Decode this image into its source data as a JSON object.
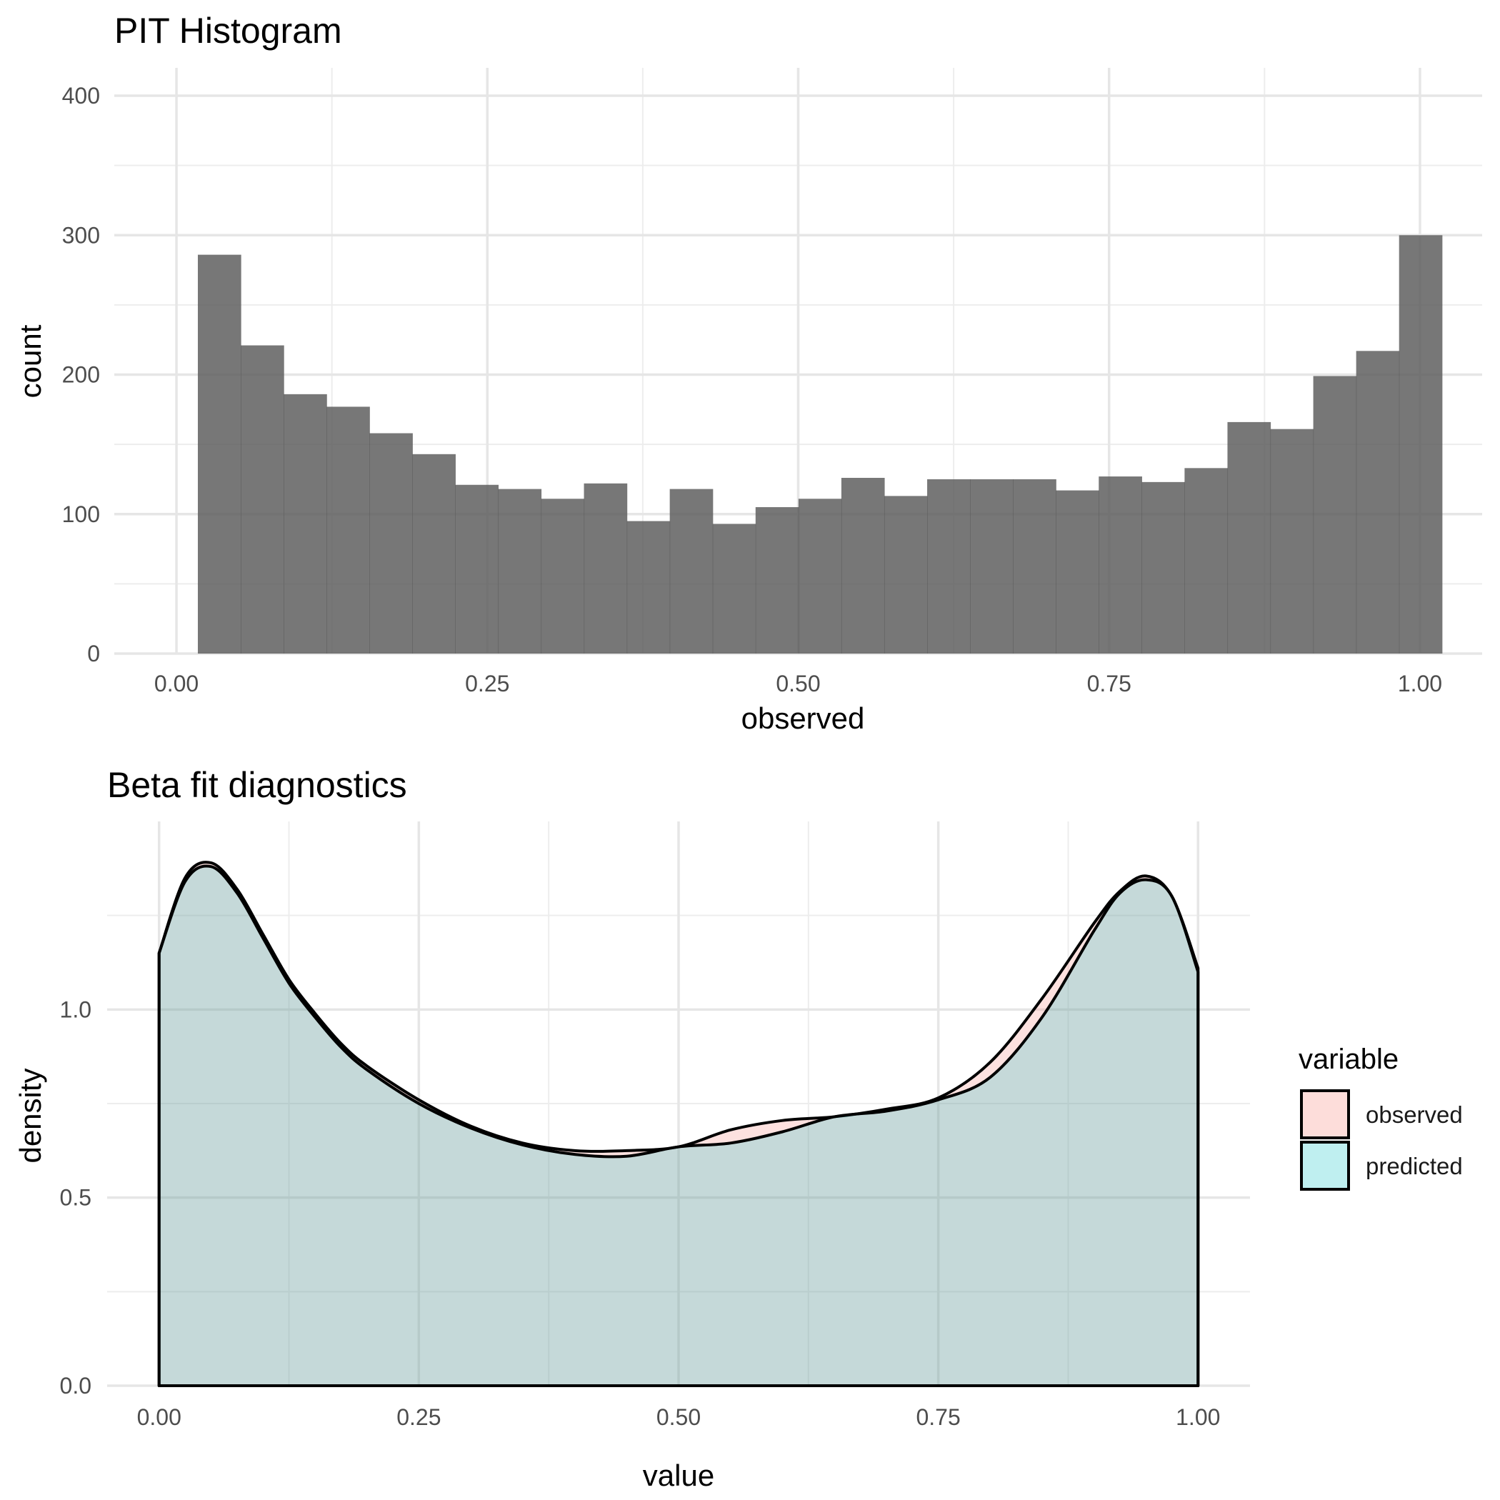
{
  "chart_data": [
    {
      "type": "bar",
      "title": "PIT Histogram",
      "xlabel": "observed",
      "ylabel": "count",
      "xlim": [
        -0.05,
        1.05
      ],
      "ylim": [
        0,
        420
      ],
      "xticks": [
        {
          "value": 0,
          "label": "0.00"
        },
        {
          "value": 0.25,
          "label": "0.25"
        },
        {
          "value": 0.5,
          "label": "0.50"
        },
        {
          "value": 0.75,
          "label": "0.75"
        },
        {
          "value": 1,
          "label": "1.00"
        }
      ],
      "yticks": [
        {
          "value": 0,
          "label": "0"
        },
        {
          "value": 100,
          "label": "100"
        },
        {
          "value": 200,
          "label": "200"
        },
        {
          "value": 300,
          "label": "300"
        },
        {
          "value": 400,
          "label": "400"
        }
      ],
      "bin_start": 0.0172,
      "bin_width": 0.0345,
      "values": [
        286,
        221,
        186,
        177,
        158,
        143,
        121,
        118,
        111,
        122,
        95,
        118,
        93,
        105,
        111,
        126,
        113,
        125,
        125,
        125,
        117,
        127,
        123,
        133,
        166,
        161,
        199,
        217,
        300
      ],
      "fill_color": "#595959",
      "grid": true
    },
    {
      "type": "area",
      "title": "Beta fit diagnostics",
      "xlabel": "value",
      "ylabel": "density",
      "xlim": [
        -0.05,
        1.05
      ],
      "ylim": [
        0,
        1.5
      ],
      "xticks": [
        {
          "value": 0,
          "label": "0.00"
        },
        {
          "value": 0.25,
          "label": "0.25"
        },
        {
          "value": 0.5,
          "label": "0.50"
        },
        {
          "value": 0.75,
          "label": "0.75"
        },
        {
          "value": 1,
          "label": "1.00"
        }
      ],
      "yticks": [
        {
          "value": 0,
          "label": "0.0"
        },
        {
          "value": 0.5,
          "label": "0.5"
        },
        {
          "value": 1,
          "label": "1.0"
        }
      ],
      "legend": {
        "title": "variable",
        "position": "right"
      },
      "series": [
        {
          "name": "observed",
          "color": "#F8766D",
          "x": [
            0,
            0.025,
            0.05,
            0.075,
            0.1,
            0.125,
            0.15,
            0.175,
            0.2,
            0.25,
            0.3,
            0.35,
            0.4,
            0.45,
            0.5,
            0.55,
            0.6,
            0.65,
            0.7,
            0.75,
            0.8,
            0.85,
            0.9,
            0.925,
            0.95,
            0.975,
            1
          ],
          "y": [
            1.15,
            1.35,
            1.39,
            1.32,
            1.2,
            1.08,
            0.99,
            0.91,
            0.85,
            0.76,
            0.69,
            0.645,
            0.625,
            0.625,
            0.635,
            0.68,
            0.705,
            0.715,
            0.735,
            0.765,
            0.86,
            1.03,
            1.23,
            1.315,
            1.355,
            1.3,
            1.11
          ]
        },
        {
          "name": "predicted",
          "color": "#00BFC4",
          "x": [
            0,
            0.025,
            0.05,
            0.075,
            0.1,
            0.125,
            0.15,
            0.175,
            0.2,
            0.25,
            0.3,
            0.35,
            0.4,
            0.45,
            0.5,
            0.55,
            0.6,
            0.65,
            0.7,
            0.75,
            0.8,
            0.85,
            0.9,
            0.925,
            0.95,
            0.975,
            1
          ],
          "y": [
            1.15,
            1.34,
            1.38,
            1.31,
            1.19,
            1.07,
            0.98,
            0.9,
            0.84,
            0.75,
            0.685,
            0.64,
            0.615,
            0.61,
            0.635,
            0.645,
            0.675,
            0.715,
            0.73,
            0.76,
            0.82,
            0.98,
            1.21,
            1.31,
            1.345,
            1.3,
            1.1
          ]
        }
      ],
      "grid": true
    }
  ]
}
